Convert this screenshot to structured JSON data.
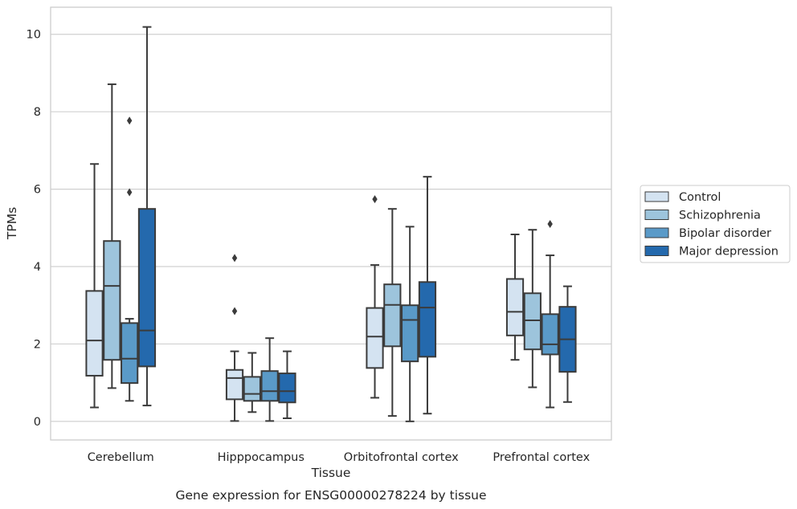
{
  "chart_data": {
    "type": "box",
    "caption": "Gene expression for ENSG00000278224 by tissue",
    "xlabel": "Tissue",
    "ylabel": "TPMs",
    "ylim": [
      -0.48,
      10.7
    ],
    "yticks": [
      0,
      2,
      4,
      6,
      8,
      10
    ],
    "ytick_labels": [
      "0",
      "2",
      "4",
      "6",
      "8",
      "10"
    ],
    "grid": "horizontal",
    "legend_placement": "right",
    "categories": [
      "Cerebellum",
      "Hipppocampus",
      "Orbitofrontal cortex",
      "Prefrontal cortex"
    ],
    "series": [
      {
        "name": "Control",
        "color": "#d4e3f1",
        "boxes": [
          {
            "whislo": 0.36,
            "q1": 1.18,
            "med": 2.09,
            "q3": 3.37,
            "whishi": 6.65,
            "fliers": []
          },
          {
            "whislo": 0.01,
            "q1": 0.57,
            "med": 1.12,
            "q3": 1.33,
            "whishi": 1.81,
            "fliers": [
              2.85,
              4.22
            ]
          },
          {
            "whislo": 0.61,
            "q1": 1.38,
            "med": 2.19,
            "q3": 2.93,
            "whishi": 4.04,
            "fliers": [
              5.74
            ]
          },
          {
            "whislo": 1.59,
            "q1": 2.22,
            "med": 2.83,
            "q3": 3.68,
            "whishi": 4.83,
            "fliers": []
          }
        ]
      },
      {
        "name": "Schizophrenia",
        "color": "#9dc4dc",
        "boxes": [
          {
            "whislo": 0.86,
            "q1": 1.59,
            "med": 3.5,
            "q3": 4.66,
            "whishi": 8.71,
            "fliers": []
          },
          {
            "whislo": 0.24,
            "q1": 0.53,
            "med": 0.71,
            "q3": 1.15,
            "whishi": 1.77,
            "fliers": []
          },
          {
            "whislo": 0.14,
            "q1": 1.94,
            "med": 3.01,
            "q3": 3.54,
            "whishi": 5.49,
            "fliers": []
          },
          {
            "whislo": 0.88,
            "q1": 1.86,
            "med": 2.61,
            "q3": 3.31,
            "whishi": 4.95,
            "fliers": []
          }
        ]
      },
      {
        "name": "Bipolar disorder",
        "color": "#5a9ac8",
        "boxes": [
          {
            "whislo": 0.53,
            "q1": 0.99,
            "med": 1.62,
            "q3": 2.54,
            "whishi": 2.65,
            "fliers": [
              5.92,
              7.77
            ]
          },
          {
            "whislo": 0.01,
            "q1": 0.53,
            "med": 0.78,
            "q3": 1.3,
            "whishi": 2.15,
            "fliers": []
          },
          {
            "whislo": 0.0,
            "q1": 1.55,
            "med": 2.62,
            "q3": 3.0,
            "whishi": 5.03,
            "fliers": []
          },
          {
            "whislo": 0.36,
            "q1": 1.73,
            "med": 1.99,
            "q3": 2.77,
            "whishi": 4.29,
            "fliers": [
              5.1
            ]
          }
        ]
      },
      {
        "name": "Major depression",
        "color": "#2469ad",
        "boxes": [
          {
            "whislo": 0.41,
            "q1": 1.42,
            "med": 2.35,
            "q3": 5.49,
            "whishi": 10.19,
            "fliers": []
          },
          {
            "whislo": 0.08,
            "q1": 0.49,
            "med": 0.78,
            "q3": 1.24,
            "whishi": 1.81,
            "fliers": []
          },
          {
            "whislo": 0.2,
            "q1": 1.67,
            "med": 2.94,
            "q3": 3.6,
            "whishi": 6.32,
            "fliers": []
          },
          {
            "whislo": 0.5,
            "q1": 1.28,
            "med": 2.12,
            "q3": 2.96,
            "whishi": 3.49,
            "fliers": []
          }
        ]
      }
    ]
  }
}
